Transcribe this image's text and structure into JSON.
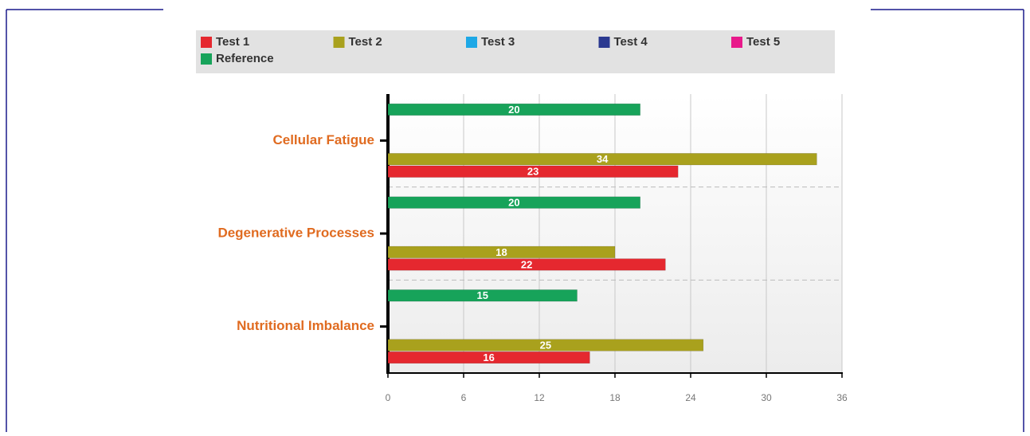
{
  "chart_data": {
    "type": "bar",
    "orientation": "horizontal",
    "categories": [
      "Cellular Fatigue",
      "Degenerative Processes",
      "Nutritional Imbalance"
    ],
    "series": [
      {
        "name": "Test 1",
        "color": "#e5282f",
        "values": [
          23,
          22,
          16
        ]
      },
      {
        "name": "Test 2",
        "color": "#a9a11d",
        "values": [
          34,
          18,
          25
        ]
      },
      {
        "name": "Test 3",
        "color": "#1ea8e6",
        "values": [
          null,
          null,
          null
        ]
      },
      {
        "name": "Test 4",
        "color": "#2b3990",
        "values": [
          null,
          null,
          null
        ]
      },
      {
        "name": "Test 5",
        "color": "#e8198b",
        "values": [
          null,
          null,
          null
        ]
      },
      {
        "name": "Reference",
        "color": "#17a35a",
        "values": [
          20,
          20,
          15
        ]
      }
    ],
    "xlim": [
      0,
      36
    ],
    "xticks": [
      0,
      6,
      12,
      18,
      24,
      30,
      36
    ],
    "grid": true,
    "legend": "top"
  }
}
